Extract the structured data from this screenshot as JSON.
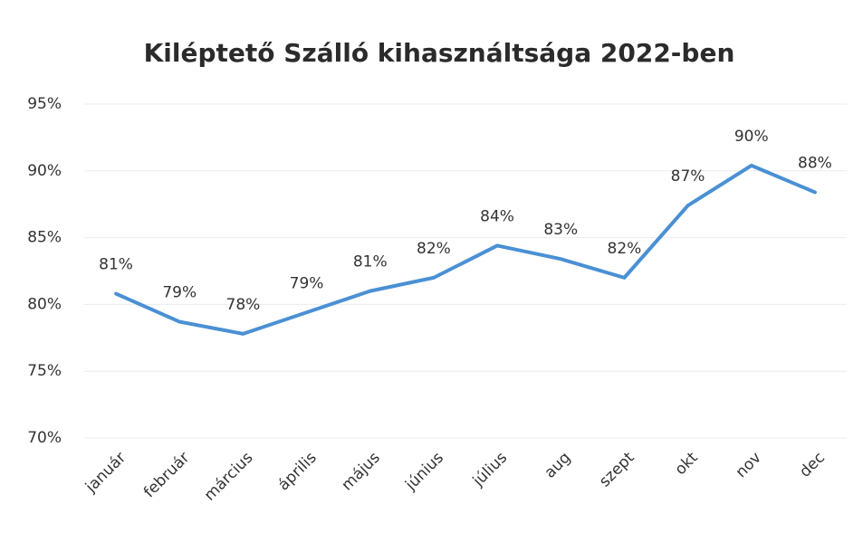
{
  "chart_data": {
    "type": "line",
    "title": "Kiléptető Szálló kihasználtsága 2022-ben",
    "categories": [
      "január",
      "február",
      "március",
      "április",
      "május",
      "június",
      "július",
      "aug",
      "szept",
      "okt",
      "nov",
      "dec"
    ],
    "series": [
      {
        "name": "Kihasználtság",
        "color": "#4a90d4",
        "values": [
          80.8,
          78.7,
          77.8,
          79.4,
          81.0,
          82.0,
          84.4,
          83.4,
          82.0,
          87.4,
          90.4,
          88.4
        ],
        "value_labels": [
          "81%",
          "79%",
          "78%",
          "79%",
          "81%",
          "82%",
          "84%",
          "83%",
          "82%",
          "87%",
          "90%",
          "88%"
        ]
      }
    ],
    "ylim": [
      70,
      95
    ],
    "yticks": [
      {
        "value": 70,
        "label": "70%"
      },
      {
        "value": 75,
        "label": "75%"
      },
      {
        "value": 80,
        "label": "80%"
      },
      {
        "value": 85,
        "label": "85%"
      },
      {
        "value": 90,
        "label": "90%"
      },
      {
        "value": 95,
        "label": "95%"
      }
    ],
    "grid": true
  }
}
